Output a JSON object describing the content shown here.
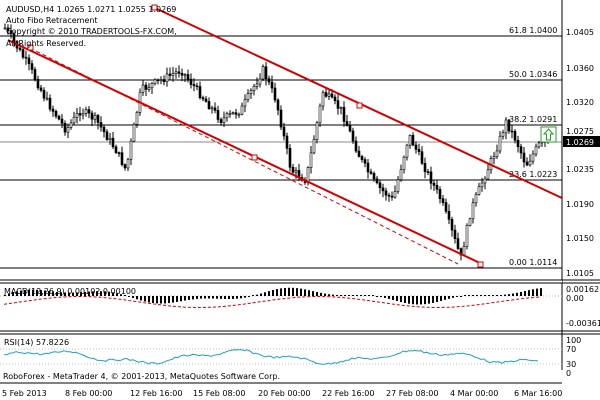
{
  "header": {
    "symbol_line": "AUDUSD,H4  1.0265 1.0271 1.0255 1.0269",
    "indicator_name": "Auto Fibo Retracement",
    "copyright_line": "Copyright © 2010 TRADERTOOLS-FX.COM,",
    "rights_line": "All Rights Reserved."
  },
  "price_axis": {
    "ticks": [
      "1.0405",
      "1.0360",
      "1.0320",
      "1.0275",
      "1.0235",
      "1.0190",
      "1.0150",
      "1.0105"
    ],
    "current_price": "1.0269"
  },
  "fibo_levels": [
    {
      "label": "61.8 1.0400"
    },
    {
      "label": "50.0 1.0346"
    },
    {
      "label": "38.2 1.0291"
    },
    {
      "label": "23.6 1.0223"
    },
    {
      "label": "0.00 1.0114"
    }
  ],
  "macd": {
    "label": "MACD(12,26,9) 0.00102 0.00100",
    "ticks": [
      "0.00162",
      "0.00",
      "-0.00361"
    ]
  },
  "rsi": {
    "label": "RSI(14) 57.8226",
    "ticks": [
      "100",
      "70",
      "30",
      "0"
    ]
  },
  "footer": {
    "text": "RoboForex - MetaTrader 4, © 2001-2013, MetaQuotes Software Corp."
  },
  "time_axis": {
    "labels": [
      "5 Feb 2013",
      "8 Feb 00:00",
      "12 Feb 16:00",
      "15 Feb 08:00",
      "20 Feb 00:00",
      "22 Feb 16:00",
      "27 Feb 08:00",
      "4 Mar 00:00",
      "6 Mar 16:00"
    ]
  },
  "colors": {
    "background": "#ffffff",
    "candle": "#000000",
    "channel": "#d40000",
    "level_line": "#000000",
    "macd_signal": "#d40000",
    "rsi_line": "#20a0c0",
    "arrow_box": "#20a020"
  },
  "icons": {
    "signal_arrow": "up-arrow-icon"
  }
}
